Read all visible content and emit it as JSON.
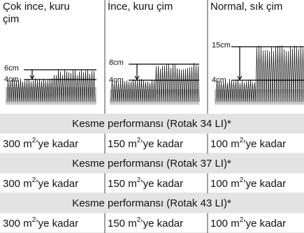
{
  "columns": [
    {
      "title": [
        "Çok ince, kuru",
        "çim"
      ],
      "labels": [
        "6cm",
        "4cm"
      ]
    },
    {
      "title": [
        "İnce, kuru çim"
      ],
      "labels": [
        "8cm",
        "4cm"
      ]
    },
    {
      "title": [
        "Normal, sık çim"
      ],
      "labels": [
        "15cm",
        "4cm"
      ]
    }
  ],
  "rows": [
    {
      "heading": "Kesme performansı (Rotak 34 LI)*",
      "cells": [
        {
          "pre": "300 m",
          "sup": "2",
          "post": "’ye kadar"
        },
        {
          "pre": "150 m",
          "sup": "2",
          "post": "’ye kadar"
        },
        {
          "pre": "100 m",
          "sup": "2",
          "post": "’ye kadar"
        }
      ]
    },
    {
      "heading": "Kesme performansı (Rotak 37 LI)*",
      "cells": [
        {
          "pre": "300 m",
          "sup": "2",
          "post": "’ye kadar"
        },
        {
          "pre": "150 m",
          "sup": "2",
          "post": "’ye kadar"
        },
        {
          "pre": "100 m",
          "sup": "2",
          "post": "’ye kadar"
        }
      ]
    },
    {
      "heading": "Kesme performansı (Rotak 43 LI)*",
      "cells": [
        {
          "pre": "300 m",
          "sup": "2",
          "post": "’ye kadar"
        },
        {
          "pre": "150 m",
          "sup": "2",
          "post": "’ye kadar"
        },
        {
          "pre": "100 m",
          "sup": "2",
          "post": "’ye kadar"
        }
      ]
    }
  ]
}
